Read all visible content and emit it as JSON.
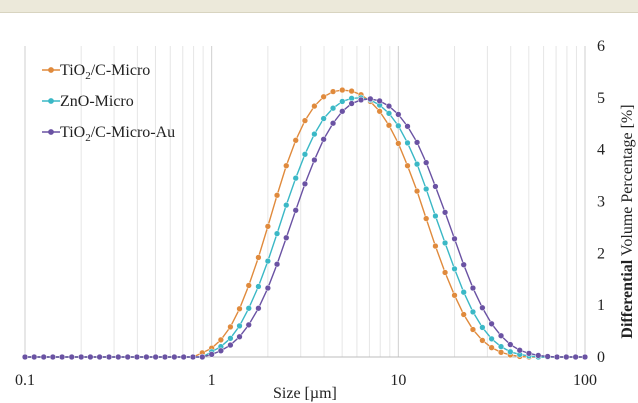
{
  "chart_data": {
    "type": "line",
    "xlabel": "Size [µm]",
    "ylabel_bold": "Differential",
    "ylabel_rest": " Volume Percentage [%]",
    "x_scale": "log",
    "xlim": [
      0.1,
      100
    ],
    "ylim": [
      0,
      6
    ],
    "x_ticks": [
      "0.1",
      "1",
      "10",
      "100"
    ],
    "y_ticks": [
      "0",
      "1",
      "2",
      "3",
      "4",
      "5",
      "6"
    ],
    "y_axis_side": "right",
    "grid": "vertical",
    "legend_position": "top-left",
    "series": [
      {
        "name_main": "TiO",
        "name_sub": "2",
        "name_tail": "/C-Micro",
        "color": "#e08a3c",
        "mu": 0.82,
        "sigma": 0.3,
        "peak": 5.15,
        "points": [
          [
            0.1,
            0
          ],
          [
            0.112,
            0
          ],
          [
            0.126,
            0
          ],
          [
            0.141,
            0
          ],
          [
            0.158,
            0
          ],
          [
            0.178,
            0
          ],
          [
            0.2,
            0
          ],
          [
            0.224,
            0
          ],
          [
            0.251,
            0
          ],
          [
            0.282,
            0
          ],
          [
            0.316,
            0
          ],
          [
            0.355,
            0
          ],
          [
            0.398,
            0
          ],
          [
            0.447,
            0
          ],
          [
            0.501,
            0
          ],
          [
            0.562,
            0
          ],
          [
            0.631,
            0
          ],
          [
            0.708,
            0
          ],
          [
            0.794,
            0
          ],
          [
            0.891,
            0.08
          ],
          [
            1.0,
            0.17
          ],
          [
            1.12,
            0.33
          ],
          [
            1.26,
            0.58
          ],
          [
            1.41,
            0.93
          ],
          [
            1.58,
            1.38
          ],
          [
            1.78,
            1.92
          ],
          [
            2.0,
            2.52
          ],
          [
            2.24,
            3.12
          ],
          [
            2.51,
            3.69
          ],
          [
            2.82,
            4.18
          ],
          [
            3.16,
            4.56
          ],
          [
            3.55,
            4.84
          ],
          [
            3.98,
            5.02
          ],
          [
            4.47,
            5.12
          ],
          [
            5.01,
            5.15
          ],
          [
            5.62,
            5.13
          ],
          [
            6.31,
            5.06
          ],
          [
            7.08,
            4.93
          ],
          [
            7.94,
            4.74
          ],
          [
            8.91,
            4.47
          ],
          [
            10.0,
            4.12
          ],
          [
            11.2,
            3.69
          ],
          [
            12.6,
            3.2
          ],
          [
            14.1,
            2.67
          ],
          [
            15.8,
            2.14
          ],
          [
            17.8,
            1.63
          ],
          [
            20.0,
            1.19
          ],
          [
            22.4,
            0.82
          ],
          [
            25.1,
            0.53
          ],
          [
            28.2,
            0.32
          ],
          [
            31.6,
            0.18
          ],
          [
            35.5,
            0.09
          ],
          [
            39.8,
            0.04
          ],
          [
            44.7,
            0.01
          ],
          [
            50.1,
            0
          ],
          [
            56.2,
            0
          ],
          [
            63.1,
            0
          ],
          [
            70.8,
            0
          ],
          [
            79.4,
            0
          ],
          [
            89.1,
            0
          ],
          [
            100,
            0
          ]
        ]
      },
      {
        "name_main": "ZnO-Micro",
        "name_sub": "",
        "name_tail": "",
        "color": "#3ab8c6",
        "mu": 0.9,
        "sigma": 0.3,
        "peak": 5.0,
        "points": [
          [
            0.1,
            0
          ],
          [
            0.112,
            0
          ],
          [
            0.126,
            0
          ],
          [
            0.141,
            0
          ],
          [
            0.158,
            0
          ],
          [
            0.178,
            0
          ],
          [
            0.2,
            0
          ],
          [
            0.224,
            0
          ],
          [
            0.251,
            0
          ],
          [
            0.282,
            0
          ],
          [
            0.316,
            0
          ],
          [
            0.355,
            0
          ],
          [
            0.398,
            0
          ],
          [
            0.447,
            0
          ],
          [
            0.501,
            0
          ],
          [
            0.562,
            0
          ],
          [
            0.631,
            0
          ],
          [
            0.708,
            0
          ],
          [
            0.794,
            0
          ],
          [
            0.891,
            0
          ],
          [
            1.0,
            0.1
          ],
          [
            1.12,
            0.2
          ],
          [
            1.26,
            0.36
          ],
          [
            1.41,
            0.6
          ],
          [
            1.58,
            0.94
          ],
          [
            1.78,
            1.36
          ],
          [
            2.0,
            1.85
          ],
          [
            2.24,
            2.38
          ],
          [
            2.51,
            2.93
          ],
          [
            2.82,
            3.45
          ],
          [
            3.16,
            3.91
          ],
          [
            3.55,
            4.3
          ],
          [
            3.98,
            4.6
          ],
          [
            4.47,
            4.8
          ],
          [
            5.01,
            4.93
          ],
          [
            5.62,
            4.99
          ],
          [
            6.31,
            5.0
          ],
          [
            7.08,
            4.96
          ],
          [
            7.94,
            4.86
          ],
          [
            8.91,
            4.7
          ],
          [
            10.0,
            4.46
          ],
          [
            11.2,
            4.13
          ],
          [
            12.6,
            3.72
          ],
          [
            14.1,
            3.24
          ],
          [
            15.8,
            2.72
          ],
          [
            17.8,
            2.2
          ],
          [
            20.0,
            1.7
          ],
          [
            22.4,
            1.25
          ],
          [
            25.1,
            0.87
          ],
          [
            28.2,
            0.57
          ],
          [
            31.6,
            0.35
          ],
          [
            35.5,
            0.2
          ],
          [
            39.8,
            0.1
          ],
          [
            44.7,
            0.05
          ],
          [
            50.1,
            0.02
          ],
          [
            56.2,
            0
          ],
          [
            63.1,
            0
          ],
          [
            70.8,
            0
          ],
          [
            79.4,
            0
          ],
          [
            89.1,
            0
          ],
          [
            100,
            0
          ]
        ]
      },
      {
        "name_main": "TiO",
        "name_sub": "2",
        "name_tail": "/C-Micro-Au",
        "color": "#6a52a3",
        "mu": 0.98,
        "sigma": 0.3,
        "peak": 4.98,
        "points": [
          [
            0.1,
            0
          ],
          [
            0.112,
            0
          ],
          [
            0.126,
            0
          ],
          [
            0.141,
            0
          ],
          [
            0.158,
            0
          ],
          [
            0.178,
            0
          ],
          [
            0.2,
            0
          ],
          [
            0.224,
            0
          ],
          [
            0.251,
            0
          ],
          [
            0.282,
            0
          ],
          [
            0.316,
            0
          ],
          [
            0.355,
            0
          ],
          [
            0.398,
            0
          ],
          [
            0.447,
            0
          ],
          [
            0.501,
            0
          ],
          [
            0.562,
            0
          ],
          [
            0.631,
            0
          ],
          [
            0.708,
            0
          ],
          [
            0.794,
            0
          ],
          [
            0.891,
            0
          ],
          [
            1.0,
            0.05
          ],
          [
            1.12,
            0.12
          ],
          [
            1.26,
            0.23
          ],
          [
            1.41,
            0.39
          ],
          [
            1.58,
            0.62
          ],
          [
            1.78,
            0.94
          ],
          [
            2.0,
            1.33
          ],
          [
            2.24,
            1.79
          ],
          [
            2.51,
            2.3
          ],
          [
            2.82,
            2.83
          ],
          [
            3.16,
            3.34
          ],
          [
            3.55,
            3.8
          ],
          [
            3.98,
            4.2
          ],
          [
            4.47,
            4.51
          ],
          [
            5.01,
            4.74
          ],
          [
            5.62,
            4.89
          ],
          [
            6.31,
            4.96
          ],
          [
            7.08,
            4.98
          ],
          [
            7.94,
            4.94
          ],
          [
            8.91,
            4.84
          ],
          [
            10.0,
            4.68
          ],
          [
            11.2,
            4.45
          ],
          [
            12.6,
            4.14
          ],
          [
            14.1,
            3.75
          ],
          [
            15.8,
            3.29
          ],
          [
            17.8,
            2.79
          ],
          [
            20.0,
            2.28
          ],
          [
            22.4,
            1.78
          ],
          [
            25.1,
            1.33
          ],
          [
            28.2,
            0.95
          ],
          [
            31.6,
            0.64
          ],
          [
            35.5,
            0.41
          ],
          [
            39.8,
            0.24
          ],
          [
            44.7,
            0.13
          ],
          [
            50.1,
            0.07
          ],
          [
            56.2,
            0.03
          ],
          [
            63.1,
            0.01
          ],
          [
            70.8,
            0
          ],
          [
            79.4,
            0
          ],
          [
            89.1,
            0
          ],
          [
            100,
            0
          ]
        ]
      }
    ]
  }
}
